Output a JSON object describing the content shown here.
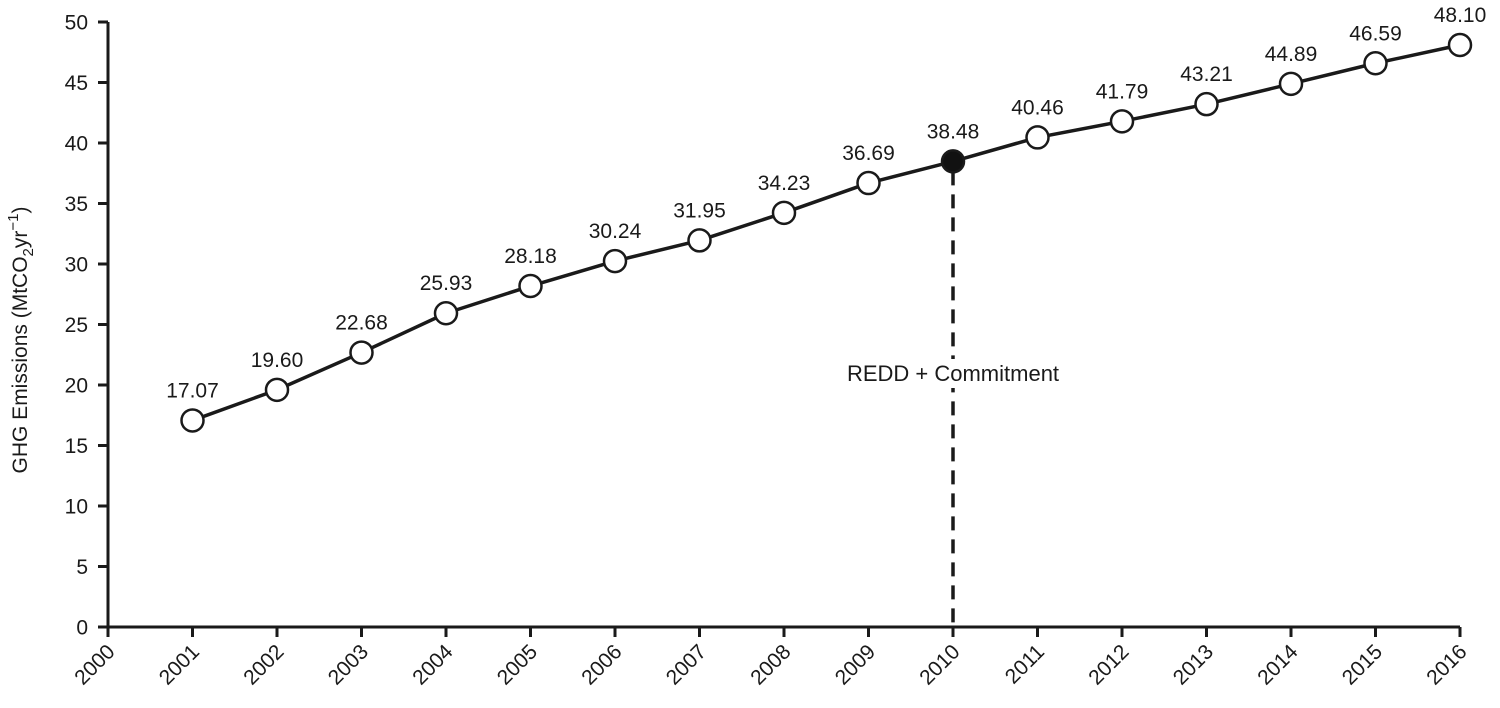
{
  "chart_data": {
    "type": "line",
    "title": "",
    "xlabel": "",
    "ylabel": {
      "prefix": "GHG Emissions (MtCO",
      "sub": "2",
      "mid": "yr",
      "sup": "−1",
      "suffix": ")"
    },
    "x": [
      2001,
      2002,
      2003,
      2004,
      2005,
      2006,
      2007,
      2008,
      2009,
      2010,
      2011,
      2012,
      2013,
      2014,
      2015,
      2016
    ],
    "values": [
      17.07,
      19.6,
      22.68,
      25.93,
      28.18,
      30.24,
      31.95,
      34.23,
      36.69,
      38.48,
      40.46,
      41.79,
      43.21,
      44.89,
      46.59,
      48.1
    ],
    "value_labels": [
      "17.07",
      "19.60",
      "22.68",
      "25.93",
      "28.18",
      "30.24",
      "31.95",
      "34.23",
      "36.69",
      "38.48",
      "40.46",
      "41.79",
      "43.21",
      "44.89",
      "46.59",
      "48.10"
    ],
    "xlim": [
      2000,
      2016
    ],
    "ylim": [
      0,
      50
    ],
    "x_ticks": [
      "2000",
      "2001",
      "2002",
      "2003",
      "2004",
      "2005",
      "2006",
      "2007",
      "2008",
      "2009",
      "2010",
      "2011",
      "2012",
      "2013",
      "2014",
      "2015",
      "2016"
    ],
    "y_ticks": [
      "0",
      "5",
      "10",
      "15",
      "20",
      "25",
      "30",
      "35",
      "40",
      "45",
      "50"
    ],
    "highlight_x": 2010,
    "annotation": {
      "text": "REDD + Commitment",
      "x": 2010
    },
    "grid": false,
    "colors": {
      "line": "#1a1a1a",
      "marker_fill": "#ffffff",
      "highlight_fill": "#111111"
    }
  }
}
